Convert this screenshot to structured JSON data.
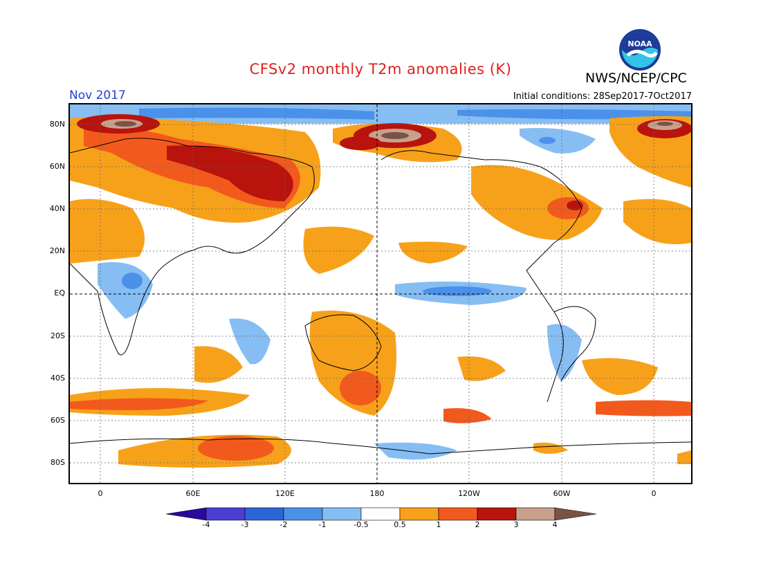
{
  "header": {
    "title": "CFSv2 monthly T2m anomalies (K)",
    "org": "NWS/NCEP/CPC",
    "month": "Nov 2017",
    "initial_conditions": "Initial conditions: 28Sep2017-7Oct2017",
    "logo_text": "NOAA"
  },
  "axes": {
    "y_labels": [
      "80N",
      "60N",
      "40N",
      "20N",
      "EQ",
      "20S",
      "40S",
      "60S",
      "80S"
    ],
    "x_labels": [
      "0",
      "60E",
      "120E",
      "180",
      "120W",
      "60W",
      "0"
    ]
  },
  "colorbar": {
    "labels": [
      "-4",
      "-3",
      "-2",
      "-1",
      "-0.5",
      "0.5",
      "1",
      "2",
      "3",
      "4"
    ],
    "colors": [
      "#2a0a9c",
      "#4a3fd0",
      "#2a66d6",
      "#4b91ea",
      "#86bdf3",
      "#ffffff",
      "#f7a11a",
      "#f25a1d",
      "#b8130d",
      "#c9a08c",
      "#7a5347"
    ]
  }
}
